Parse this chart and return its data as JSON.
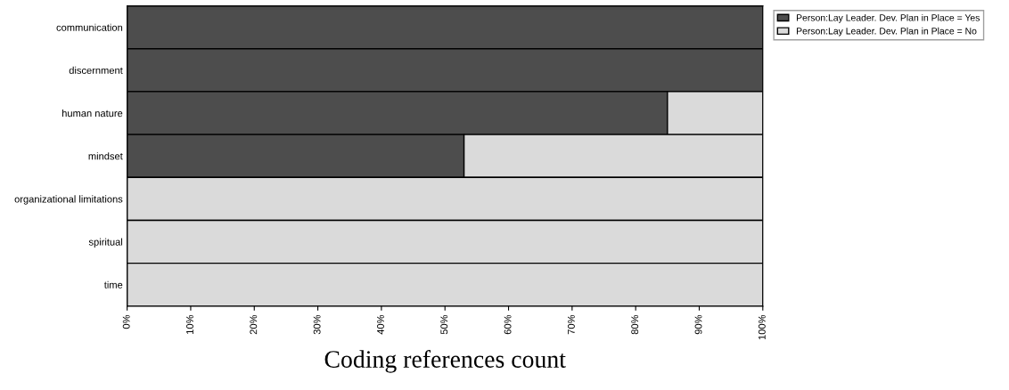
{
  "chart_data": {
    "type": "bar",
    "orientation": "horizontal",
    "stacked": true,
    "xlabel": "Coding references count",
    "categories": [
      "communication",
      "discernment",
      "human nature",
      "mindset",
      "organizational limitations",
      "spiritual",
      "time"
    ],
    "series": [
      {
        "name": "Person:Lay Leader. Dev. Plan in Place = Yes",
        "color": "#4d4d4d",
        "values": [
          100,
          100,
          85,
          53,
          0,
          0,
          0
        ]
      },
      {
        "name": "Person:Lay Leader. Dev. Plan in Place = No",
        "color": "#dadada",
        "values": [
          0,
          0,
          15,
          47,
          100,
          100,
          100
        ]
      }
    ],
    "xlim": [
      0,
      100
    ],
    "xticks": [
      {
        "value": 0,
        "label": "0%"
      },
      {
        "value": 10,
        "label": "10%"
      },
      {
        "value": 20,
        "label": "20%"
      },
      {
        "value": 30,
        "label": "30%"
      },
      {
        "value": 40,
        "label": "40%"
      },
      {
        "value": 50,
        "label": "50%"
      },
      {
        "value": 60,
        "label": "60%"
      },
      {
        "value": 70,
        "label": "70%"
      },
      {
        "value": 80,
        "label": "80%"
      },
      {
        "value": 90,
        "label": "90%"
      },
      {
        "value": 100,
        "label": "100%"
      }
    ],
    "grid": false,
    "legend": "top right"
  }
}
